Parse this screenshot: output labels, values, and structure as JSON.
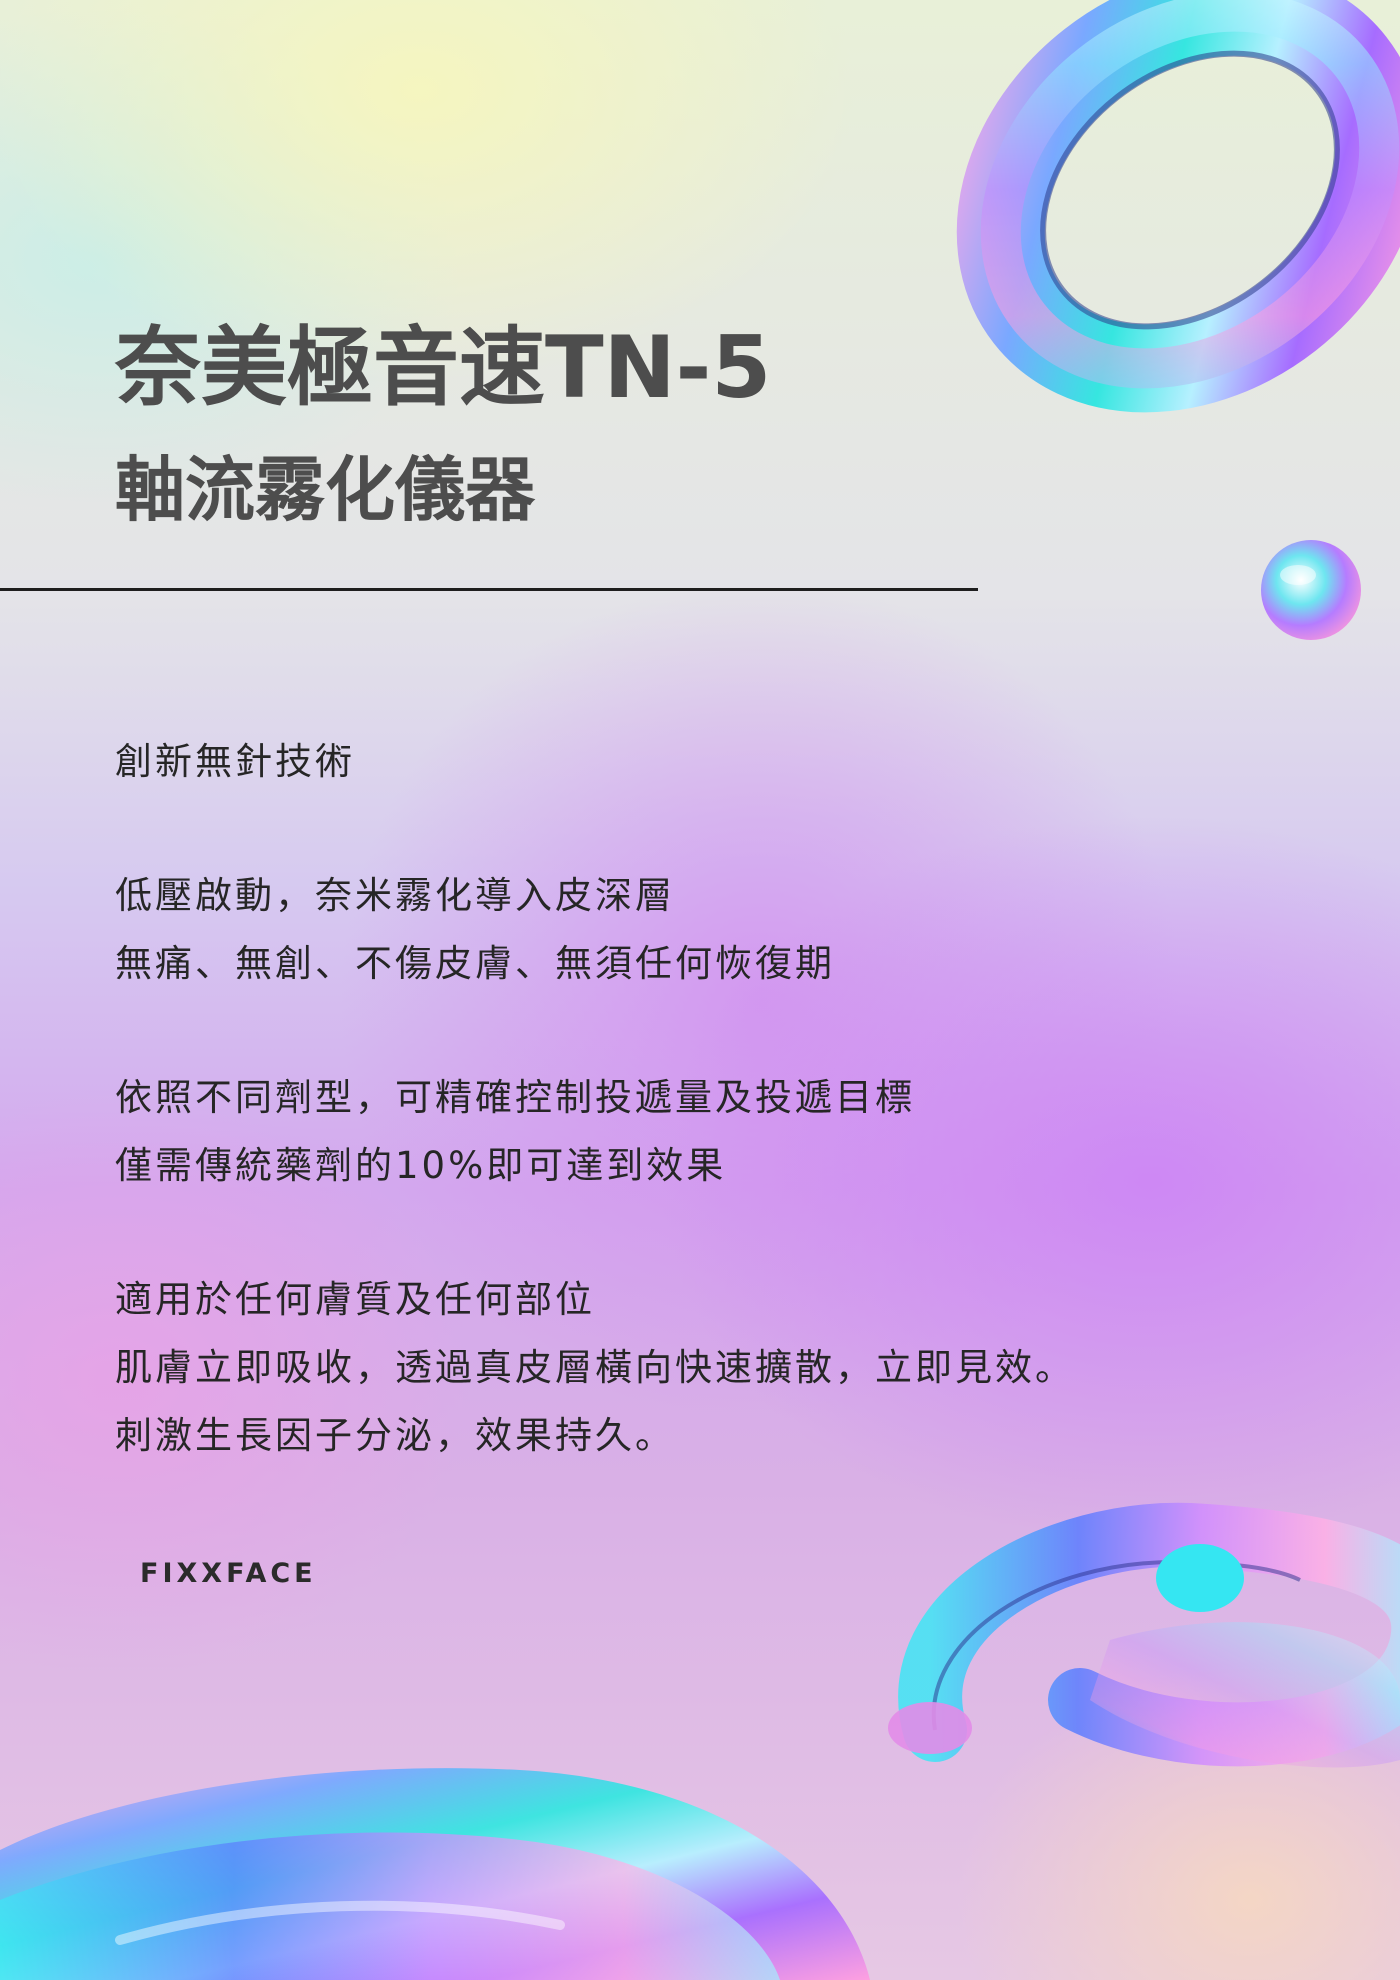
{
  "title": {
    "line1": "奈美極音速TN-5",
    "line2": "軸流霧化儀器"
  },
  "sections": [
    {
      "lines": [
        "創新無針技術"
      ]
    },
    {
      "lines": [
        "低壓啟動，奈米霧化導入皮深層",
        "無痛、無創、不傷皮膚、無須任何恢復期"
      ]
    },
    {
      "lines": [
        "依照不同劑型，可精確控制投遞量及投遞目標",
        "僅需傳統藥劑的10%即可達到效果"
      ]
    },
    {
      "lines": [
        "適用於任何膚質及任何部位",
        "肌膚立即吸收，透過真皮層橫向快速擴散，立即見效。",
        "刺激生長因子分泌，效果持久。"
      ]
    }
  ],
  "brand": "FIXXFACE",
  "colors": {
    "title": "#4d4d4d",
    "body": "#262626",
    "rule": "#1e1e1e"
  }
}
